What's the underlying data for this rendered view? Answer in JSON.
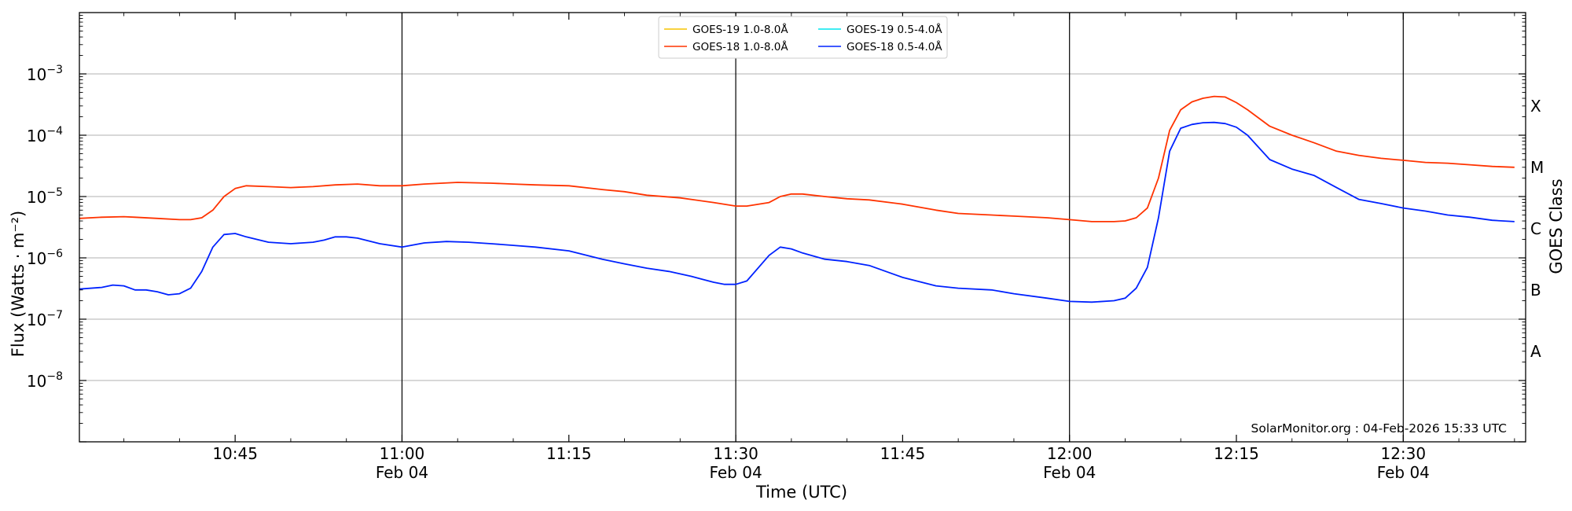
{
  "chart_data": {
    "type": "line",
    "title": "",
    "xlabel": "Time (UTC)",
    "ylabel": "Flux (Watts · m⁻²)",
    "ylabel_right": "GOES Class",
    "yscale": "log",
    "ylim": [
      1e-09,
      0.01
    ],
    "xlim": [
      "10:31",
      "12:41"
    ],
    "grid": "horizontal",
    "legend_position": "top-center",
    "y_tick_labels": [
      {
        "value": 1e-08,
        "base": "10",
        "exp": "−8"
      },
      {
        "value": 1e-07,
        "base": "10",
        "exp": "−7"
      },
      {
        "value": 1e-06,
        "base": "10",
        "exp": "−6"
      },
      {
        "value": 1e-05,
        "base": "10",
        "exp": "−5"
      },
      {
        "value": 0.0001,
        "base": "10",
        "exp": "−4"
      },
      {
        "value": 0.001,
        "base": "10",
        "exp": "−3"
      }
    ],
    "goes_classes": [
      {
        "label": "A",
        "value": 3e-08
      },
      {
        "label": "B",
        "value": 3e-07
      },
      {
        "label": "C",
        "value": 3e-06
      },
      {
        "label": "M",
        "value": 3e-05
      },
      {
        "label": "X",
        "value": 0.0003
      }
    ],
    "x_ticks": [
      {
        "time": "10:45",
        "label": "10:45",
        "date": ""
      },
      {
        "time": "11:00",
        "label": "11:00",
        "date": "Feb 04"
      },
      {
        "time": "11:15",
        "label": "11:15",
        "date": ""
      },
      {
        "time": "11:30",
        "label": "11:30",
        "date": "Feb 04"
      },
      {
        "time": "11:45",
        "label": "11:45",
        "date": ""
      },
      {
        "time": "12:00",
        "label": "12:00",
        "date": "Feb 04"
      },
      {
        "time": "12:15",
        "label": "12:15",
        "date": ""
      },
      {
        "time": "12:30",
        "label": "12:30",
        "date": "Feb 04"
      }
    ],
    "vertical_lines": [
      "11:00",
      "11:30",
      "12:00",
      "12:30"
    ],
    "annotation": "SolarMonitor.org : 04-Feb-2026 15:33 UTC",
    "series": [
      {
        "name": "GOES-19 1.0-8.0Å",
        "color": "#f5c400",
        "x": [],
        "y": []
      },
      {
        "name": "GOES-19 0.5-4.0Å",
        "color": "#00e5ee",
        "x": [],
        "y": []
      },
      {
        "name": "GOES-18 1.0-8.0Å",
        "color": "#ff3300",
        "x": [
          "10:31",
          "10:33",
          "10:35",
          "10:36",
          "10:38",
          "10:40",
          "10:41",
          "10:42",
          "10:43",
          "10:44",
          "10:45",
          "10:46",
          "10:48",
          "10:50",
          "10:52",
          "10:54",
          "10:56",
          "10:58",
          "11:00",
          "11:02",
          "11:05",
          "11:08",
          "11:10",
          "11:12",
          "11:15",
          "11:18",
          "11:20",
          "11:22",
          "11:25",
          "11:28",
          "11:30",
          "11:31",
          "11:33",
          "11:34",
          "11:35",
          "11:36",
          "11:38",
          "11:40",
          "11:42",
          "11:45",
          "11:48",
          "11:50",
          "11:53",
          "11:55",
          "11:58",
          "12:00",
          "12:02",
          "12:04",
          "12:05",
          "12:06",
          "12:07",
          "12:08",
          "12:09",
          "12:10",
          "12:11",
          "12:12",
          "12:13",
          "12:14",
          "12:15",
          "12:16",
          "12:18",
          "12:20",
          "12:22",
          "12:24",
          "12:26",
          "12:28",
          "12:30",
          "12:32",
          "12:34",
          "12:36",
          "12:38",
          "12:40"
        ],
        "y": [
          4.4e-06,
          4.6e-06,
          4.7e-06,
          4.6e-06,
          4.4e-06,
          4.2e-06,
          4.2e-06,
          4.5e-06,
          6e-06,
          1e-05,
          1.35e-05,
          1.5e-05,
          1.45e-05,
          1.4e-05,
          1.45e-05,
          1.55e-05,
          1.6e-05,
          1.5e-05,
          1.5e-05,
          1.6e-05,
          1.7e-05,
          1.65e-05,
          1.6e-05,
          1.55e-05,
          1.5e-05,
          1.3e-05,
          1.2e-05,
          1.05e-05,
          9.5e-06,
          8e-06,
          7e-06,
          7e-06,
          8e-06,
          1e-05,
          1.1e-05,
          1.1e-05,
          1e-05,
          9.2e-06,
          8.8e-06,
          7.5e-06,
          6e-06,
          5.3e-06,
          5e-06,
          4.8e-06,
          4.5e-06,
          4.2e-06,
          3.9e-06,
          3.9e-06,
          4e-06,
          4.5e-06,
          6.5e-06,
          2e-05,
          0.00012,
          0.00026,
          0.00035,
          0.0004,
          0.00043,
          0.00042,
          0.00034,
          0.00026,
          0.00014,
          0.0001,
          7.5e-05,
          5.5e-05,
          4.7e-05,
          4.2e-05,
          3.9e-05,
          3.6e-05,
          3.5e-05,
          3.3e-05,
          3.1e-05,
          3e-05
        ]
      },
      {
        "name": "GOES-18 0.5-4.0Å",
        "color": "#0022ff",
        "x": [
          "10:31",
          "10:33",
          "10:34",
          "10:35",
          "10:36",
          "10:37",
          "10:38",
          "10:39",
          "10:40",
          "10:41",
          "10:42",
          "10:43",
          "10:44",
          "10:45",
          "10:46",
          "10:48",
          "10:50",
          "10:52",
          "10:53",
          "10:54",
          "10:55",
          "10:56",
          "10:58",
          "11:00",
          "11:02",
          "11:04",
          "11:06",
          "11:08",
          "11:10",
          "11:12",
          "11:15",
          "11:18",
          "11:20",
          "11:22",
          "11:24",
          "11:26",
          "11:28",
          "11:29",
          "11:30",
          "11:31",
          "11:33",
          "11:34",
          "11:35",
          "11:36",
          "11:38",
          "11:40",
          "11:42",
          "11:45",
          "11:48",
          "11:50",
          "11:53",
          "11:55",
          "11:58",
          "12:00",
          "12:02",
          "12:04",
          "12:05",
          "12:06",
          "12:07",
          "12:08",
          "12:09",
          "12:10",
          "12:11",
          "12:12",
          "12:13",
          "12:14",
          "12:15",
          "12:16",
          "12:18",
          "12:20",
          "12:22",
          "12:24",
          "12:26",
          "12:28",
          "12:30",
          "12:32",
          "12:34",
          "12:36",
          "12:38",
          "12:40"
        ],
        "y": [
          3.1e-07,
          3.3e-07,
          3.6e-07,
          3.5e-07,
          3e-07,
          3e-07,
          2.8e-07,
          2.5e-07,
          2.6e-07,
          3.2e-07,
          6e-07,
          1.5e-06,
          2.4e-06,
          2.5e-06,
          2.2e-06,
          1.8e-06,
          1.7e-06,
          1.8e-06,
          1.95e-06,
          2.2e-06,
          2.2e-06,
          2.1e-06,
          1.7e-06,
          1.5e-06,
          1.75e-06,
          1.85e-06,
          1.8e-06,
          1.7e-06,
          1.6e-06,
          1.5e-06,
          1.3e-06,
          9.5e-07,
          8e-07,
          6.8e-07,
          6e-07,
          5e-07,
          4e-07,
          3.7e-07,
          3.7e-07,
          4.2e-07,
          1.1e-06,
          1.5e-06,
          1.4e-06,
          1.2e-06,
          9.5e-07,
          8.7e-07,
          7.5e-07,
          4.8e-07,
          3.5e-07,
          3.2e-07,
          3e-07,
          2.6e-07,
          2.2e-07,
          1.95e-07,
          1.9e-07,
          2e-07,
          2.2e-07,
          3.2e-07,
          7e-07,
          4.5e-06,
          5.5e-05,
          0.00013,
          0.00015,
          0.00016,
          0.000162,
          0.000155,
          0.000135,
          0.0001,
          4e-05,
          2.8e-05,
          2.2e-05,
          1.4e-05,
          9e-06,
          7.7e-06,
          6.5e-06,
          5.8e-06,
          5e-06,
          4.6e-06,
          4.1e-06,
          3.9e-06
        ]
      }
    ]
  }
}
